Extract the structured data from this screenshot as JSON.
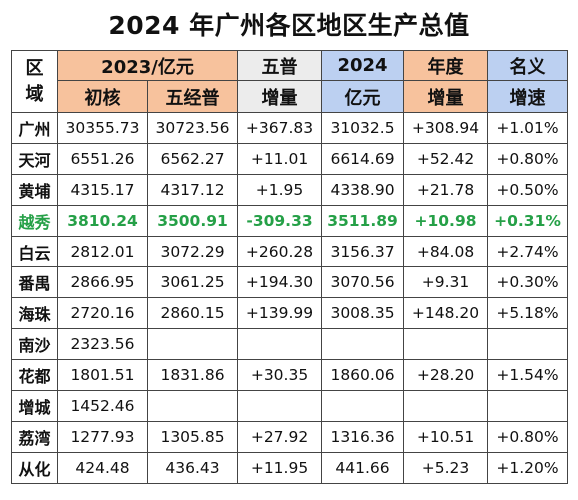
{
  "title": "2024 年广州各区地区生产总值",
  "header": {
    "corner": [
      "区",
      "域"
    ],
    "col2023": "2023/亿元",
    "sub_initial": "初核",
    "sub_census": "五经普",
    "census_inc": [
      "五普",
      "增量"
    ],
    "col2024": [
      "2024",
      "亿元"
    ],
    "annual_inc": [
      "年度",
      "增量"
    ],
    "nominal_growth": [
      "名义",
      "增速"
    ]
  },
  "rows": [
    {
      "region": "广州",
      "initial": "30355.73",
      "census": "30723.56",
      "census_inc": "+367.83",
      "v2024": "31032.5",
      "annual_inc": "+308.94",
      "growth": "+1.01%"
    },
    {
      "region": "天河",
      "initial": "6551.26",
      "census": "6562.27",
      "census_inc": "+11.01",
      "v2024": "6614.69",
      "annual_inc": "+52.42",
      "growth": "+0.80%"
    },
    {
      "region": "黄埔",
      "initial": "4315.17",
      "census": "4317.12",
      "census_inc": "+1.95",
      "v2024": "4338.90",
      "annual_inc": "+21.78",
      "growth": "+0.50%"
    },
    {
      "region": "越秀",
      "initial": "3810.24",
      "census": "3500.91",
      "census_inc": "-309.33",
      "v2024": "3511.89",
      "annual_inc": "+10.98",
      "growth": "+0.31%",
      "highlight": true
    },
    {
      "region": "白云",
      "initial": "2812.01",
      "census": "3072.29",
      "census_inc": "+260.28",
      "v2024": "3156.37",
      "annual_inc": "+84.08",
      "growth": "+2.74%"
    },
    {
      "region": "番禺",
      "initial": "2866.95",
      "census": "3061.25",
      "census_inc": "+194.30",
      "v2024": "3070.56",
      "annual_inc": "+9.31",
      "growth": "+0.30%"
    },
    {
      "region": "海珠",
      "initial": "2720.16",
      "census": "2860.15",
      "census_inc": "+139.99",
      "v2024": "3008.35",
      "annual_inc": "+148.20",
      "growth": "+5.18%"
    },
    {
      "region": "南沙",
      "initial": "2323.56",
      "census": "",
      "census_inc": "",
      "v2024": "",
      "annual_inc": "",
      "growth": ""
    },
    {
      "region": "花都",
      "initial": "1801.51",
      "census": "1831.86",
      "census_inc": "+30.35",
      "v2024": "1860.06",
      "annual_inc": "+28.20",
      "growth": "+1.54%"
    },
    {
      "region": "增城",
      "initial": "1452.46",
      "census": "",
      "census_inc": "",
      "v2024": "",
      "annual_inc": "",
      "growth": ""
    },
    {
      "region": "荔湾",
      "initial": "1277.93",
      "census": "1305.85",
      "census_inc": "+27.92",
      "v2024": "1316.36",
      "annual_inc": "+10.51",
      "growth": "+0.80%"
    },
    {
      "region": "从化",
      "initial": "424.48",
      "census": "436.43",
      "census_inc": "+11.95",
      "v2024": "441.66",
      "annual_inc": "+5.23",
      "growth": "+1.20%"
    }
  ],
  "colors": {
    "orange_header": "#f7c29d",
    "blue_header": "#bcd0f1",
    "gray_header": "#ececec",
    "highlight_text": "#25a047"
  }
}
